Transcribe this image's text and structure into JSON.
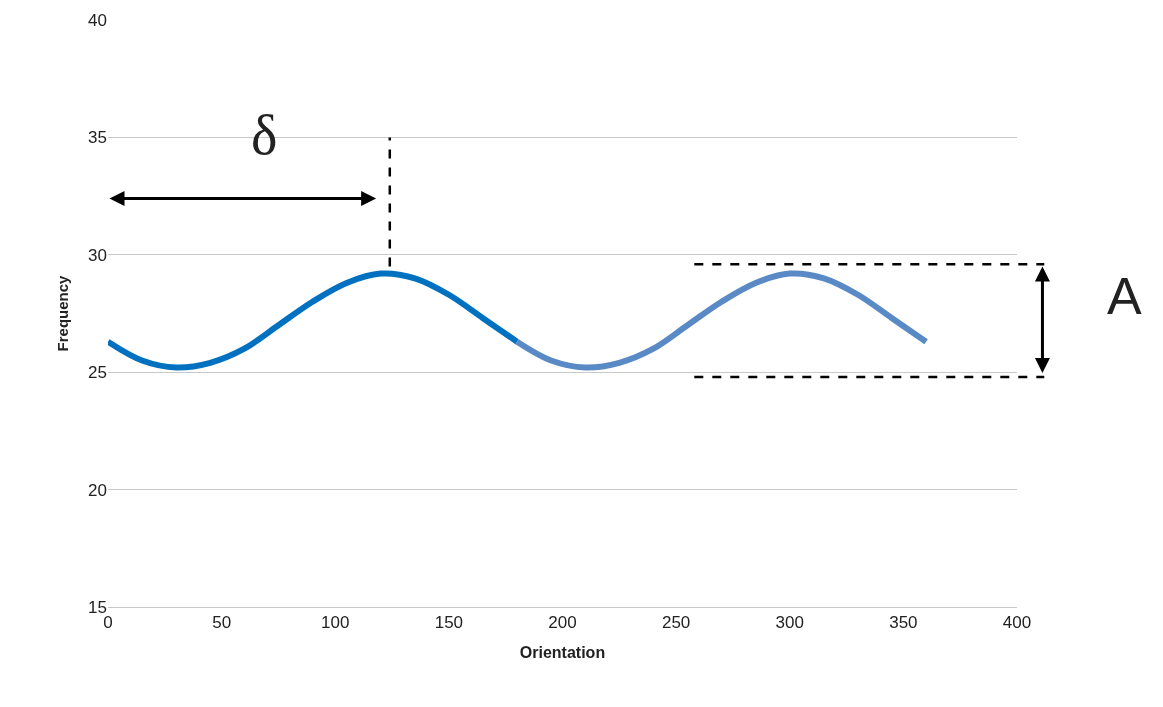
{
  "chart_data": {
    "type": "line",
    "xlabel": "Orientation",
    "ylabel": "Frequency",
    "xlim": [
      0,
      400
    ],
    "xticks": [
      0,
      50,
      100,
      150,
      200,
      250,
      300,
      350,
      400
    ],
    "ylim": [
      15,
      40
    ],
    "yticks": [
      15,
      20,
      25,
      30,
      35,
      40
    ],
    "grid": "y",
    "series": [
      {
        "color": "#0070c0",
        "x": [
          0,
          15,
          30,
          45,
          60,
          75,
          90,
          105,
          120,
          135,
          150,
          165,
          180
        ],
        "values": [
          26.3,
          25.5,
          25.2,
          25.4,
          26.0,
          27.0,
          28.0,
          28.8,
          29.2,
          29.0,
          28.3,
          27.3,
          26.3
        ]
      },
      {
        "color": "#5a8ac6",
        "x": [
          180,
          195,
          210,
          225,
          240,
          255,
          270,
          285,
          300,
          315,
          330,
          345,
          360
        ],
        "values": [
          26.3,
          25.5,
          25.2,
          25.4,
          26.0,
          27.0,
          28.0,
          28.8,
          29.2,
          29.0,
          28.3,
          27.3,
          26.3
        ]
      }
    ],
    "ref_lines": [
      {
        "axis": "x",
        "value": 124,
        "color": "#000000",
        "line_style": "dashed"
      },
      {
        "axis": "y",
        "value": 29.6,
        "color": "#000000",
        "line_style": "dashed"
      },
      {
        "axis": "y",
        "value": 24.8,
        "color": "#000000",
        "line_style": "dashed"
      }
    ],
    "annotations": [
      "δ",
      "A"
    ]
  }
}
